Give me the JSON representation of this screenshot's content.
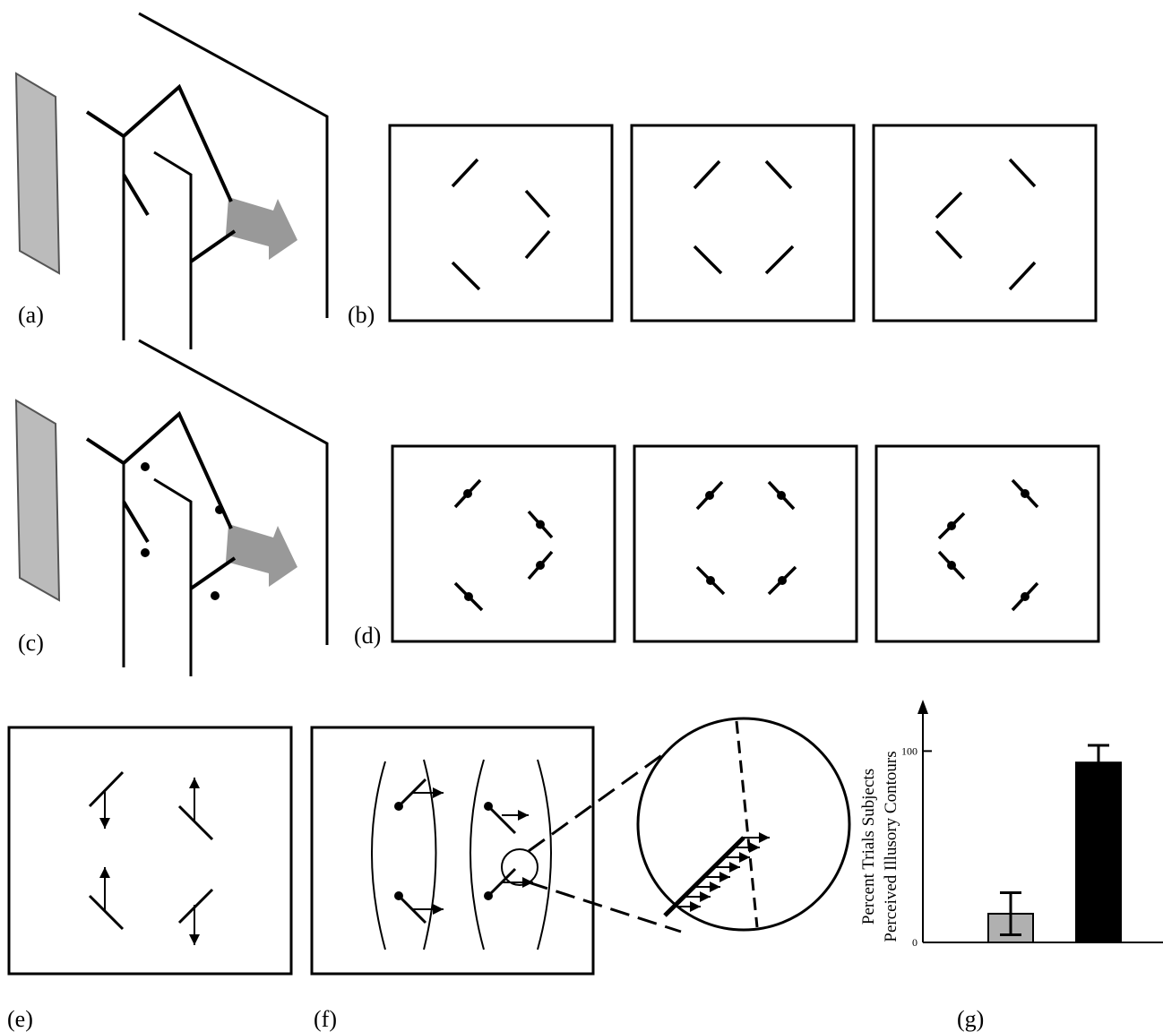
{
  "panel_labels": {
    "a": "(a)",
    "b": "(b)",
    "c": "(c)",
    "d": "(d)",
    "e": "(e)",
    "f": "(f)",
    "g": "(g)"
  },
  "chart_data": {
    "type": "bar",
    "y_label": [
      "Percent Trials Subjects",
      "Perceived Illusory Contours"
    ],
    "categories": [
      null,
      null
    ],
    "values": [
      15,
      94
    ],
    "errors": [
      11,
      9
    ],
    "colors": [
      "#b0b0b0",
      "#000000"
    ],
    "ylim": [
      0,
      125
    ],
    "yticks": [
      0,
      100
    ]
  }
}
